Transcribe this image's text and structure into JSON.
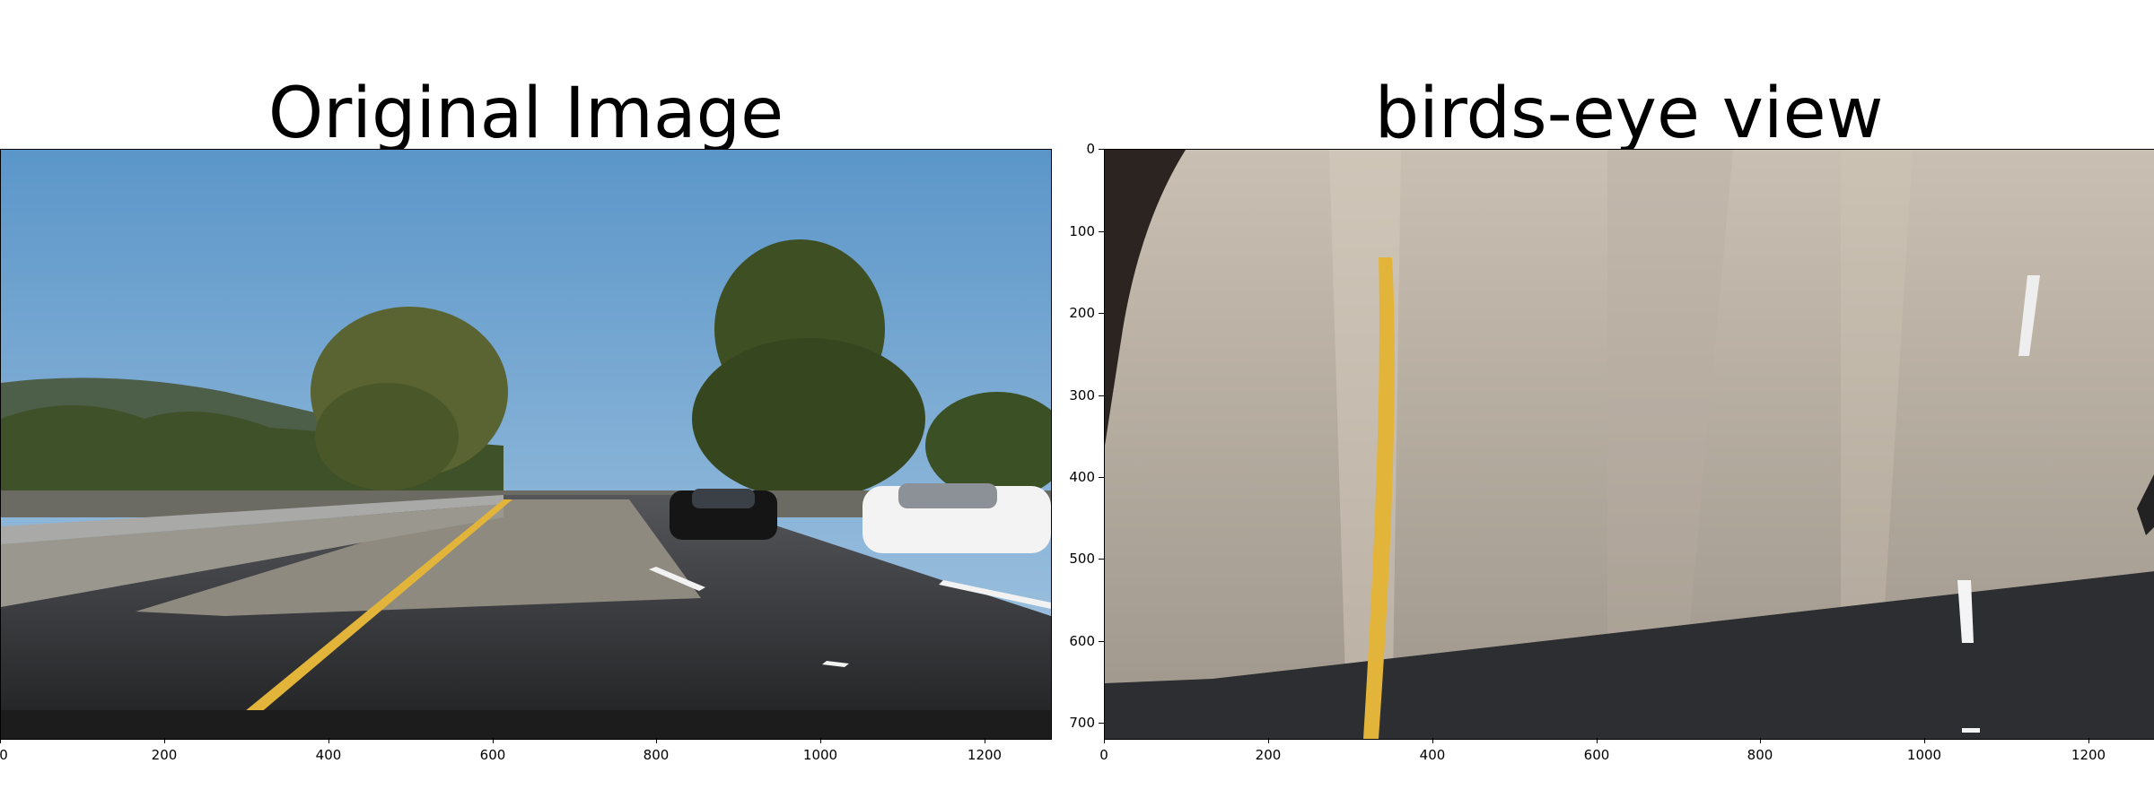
{
  "left_panel": {
    "title": "Original Image",
    "x_ticks": [
      "0",
      "200",
      "400",
      "600",
      "800",
      "1000",
      "1200"
    ]
  },
  "right_panel": {
    "title": "birds-eye view",
    "x_ticks": [
      "0",
      "200",
      "400",
      "600",
      "800",
      "1000",
      "1200"
    ],
    "y_ticks": [
      "0",
      "100",
      "200",
      "300",
      "400",
      "500",
      "600",
      "700"
    ]
  },
  "colors": {
    "sky": "#6fa5d2",
    "asphalt": "#2a2b2e",
    "concrete": "#b8b2a6",
    "lane_yellow": "#e2b43a",
    "lane_white": "#f2f2f2",
    "tree": "#4b5a2f"
  }
}
